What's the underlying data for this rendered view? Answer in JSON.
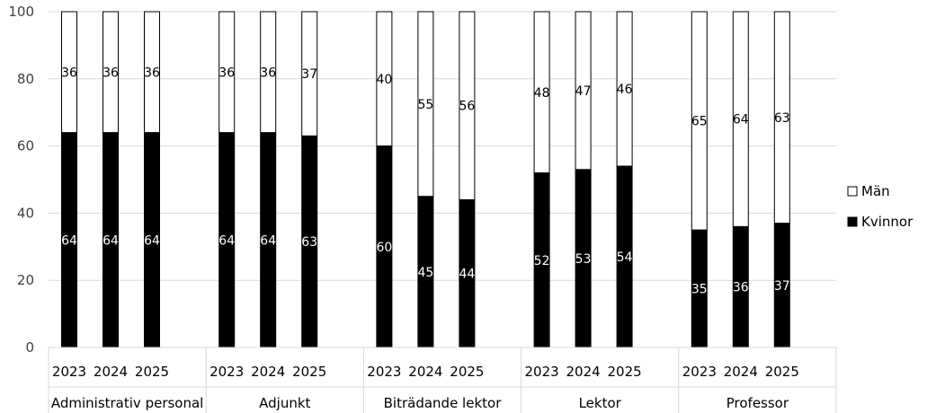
{
  "chart_data": {
    "type": "bar",
    "stacked": true,
    "groups": [
      {
        "name": "Administrativ personal",
        "years": [
          "2023",
          "2024",
          "2025"
        ],
        "kvinnor": [
          64,
          64,
          64
        ],
        "man": [
          36,
          36,
          36
        ]
      },
      {
        "name": "Adjunkt",
        "years": [
          "2023",
          "2024",
          "2025"
        ],
        "kvinnor": [
          64,
          64,
          63
        ],
        "man": [
          36,
          36,
          37
        ]
      },
      {
        "name": "Biträdande lektor",
        "years": [
          "2023",
          "2024",
          "2025"
        ],
        "kvinnor": [
          60,
          45,
          44
        ],
        "man": [
          40,
          55,
          56
        ]
      },
      {
        "name": "Lektor",
        "years": [
          "2023",
          "2024",
          "2025"
        ],
        "kvinnor": [
          52,
          53,
          54
        ],
        "man": [
          48,
          47,
          46
        ]
      },
      {
        "name": "Professor",
        "years": [
          "2023",
          "2024",
          "2025"
        ],
        "kvinnor": [
          35,
          36,
          37
        ],
        "man": [
          65,
          64,
          63
        ]
      }
    ],
    "series": [
      {
        "name": "Män",
        "color": "#ffffff"
      },
      {
        "name": "Kvinnor",
        "color": "#000000"
      }
    ],
    "ylim": [
      0,
      100
    ],
    "yticks": [
      "0",
      "20",
      "40",
      "60",
      "80",
      "100"
    ],
    "grid": true,
    "legend_position": "right"
  }
}
